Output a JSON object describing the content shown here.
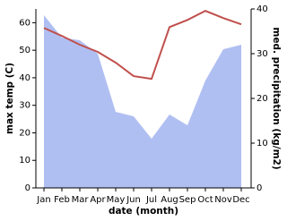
{
  "chart_data": {
    "type": "line-area",
    "x_label": "date (month)",
    "y_label": "max temp (C)",
    "y2_label": "med. precipitation (kg/m2)",
    "categories": [
      "Jan",
      "Feb",
      "Mar",
      "Apr",
      "May",
      "Jun",
      "Jul",
      "Aug",
      "Sep",
      "Oct",
      "Nov",
      "Dec"
    ],
    "series": [
      {
        "name": "med. precipitation",
        "color": "#b0bff2",
        "axis": "y2",
        "kind": "area",
        "values": [
          38.6,
          33.6,
          33,
          30,
          17,
          16,
          11,
          16.4,
          14,
          24,
          31,
          32
        ]
      },
      {
        "name": "max temp",
        "color": "#c0504d",
        "axis": "y",
        "kind": "line",
        "values": [
          58.1,
          55.2,
          52,
          49.4,
          45.5,
          40.6,
          39.6,
          58.4,
          61,
          64.3,
          61.7,
          59.4
        ]
      }
    ],
    "ylim": [
      0,
      65
    ],
    "yticks": [
      0,
      10,
      20,
      30,
      40,
      50,
      60
    ],
    "y2lim": [
      0,
      40
    ],
    "y2ticks": [
      0,
      10,
      20,
      30,
      40
    ]
  }
}
